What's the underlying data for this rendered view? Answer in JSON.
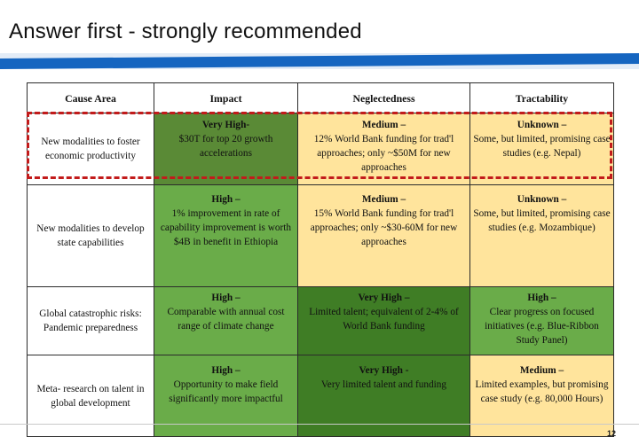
{
  "slide": {
    "title": "Answer first - strongly recommended",
    "page_number": "12",
    "colors": {
      "banner_blue": "#1565c0",
      "banner_light": "#e3ecf7",
      "highlight_red": "#c21b1b",
      "very_high_dark": "#5a8a36",
      "very_high": "#3f7d25",
      "high": "#6aac49",
      "medium_unknown": "#ffe49c"
    }
  },
  "table": {
    "headers": [
      "Cause Area",
      "Impact",
      "Neglectedness",
      "Tractability"
    ],
    "rows": [
      {
        "cause": "New modalities to foster economic productivity",
        "impact": {
          "level": "Very High-",
          "desc": "$30T for top 20 growth accelerations"
        },
        "neglectedness": {
          "level": "Medium –",
          "desc": "12% World Bank funding for trad'l approaches; only ~$50M for new approaches"
        },
        "tractability": {
          "level": "Unknown –",
          "desc": "Some, but limited, promising case studies (e.g. Nepal)"
        }
      },
      {
        "cause": "New modalities to develop state capabilities",
        "impact": {
          "level": "High –",
          "desc": "1% improvement in rate of capability improvement is worth $4B in benefit in Ethiopia"
        },
        "neglectedness": {
          "level": "Medium –",
          "desc": "15% World Bank funding for trad'l approaches; only ~$30-60M for new approaches"
        },
        "tractability": {
          "level": "Unknown –",
          "desc": "Some, but limited, promising case studies (e.g. Mozambique)"
        }
      },
      {
        "cause": "Global catastrophic risks: Pandemic preparedness",
        "impact": {
          "level": "High –",
          "desc": "Comparable with annual cost range of climate change"
        },
        "neglectedness": {
          "level": "Very High –",
          "desc": "Limited talent; equivalent of 2-4% of World Bank funding"
        },
        "tractability": {
          "level": "High –",
          "desc": "Clear progress on focused initiatives (e.g. Blue-Ribbon Study Panel)"
        }
      },
      {
        "cause": "Meta- research on talent in global development",
        "impact": {
          "level": "High –",
          "desc": "Opportunity to make field significantly more impactful"
        },
        "neglectedness": {
          "level": "Very High -",
          "desc": "Very limited talent and funding"
        },
        "tractability": {
          "level": "Medium –",
          "desc": "Limited examples, but promising case study (e.g. 80,000 Hours)"
        }
      }
    ]
  }
}
